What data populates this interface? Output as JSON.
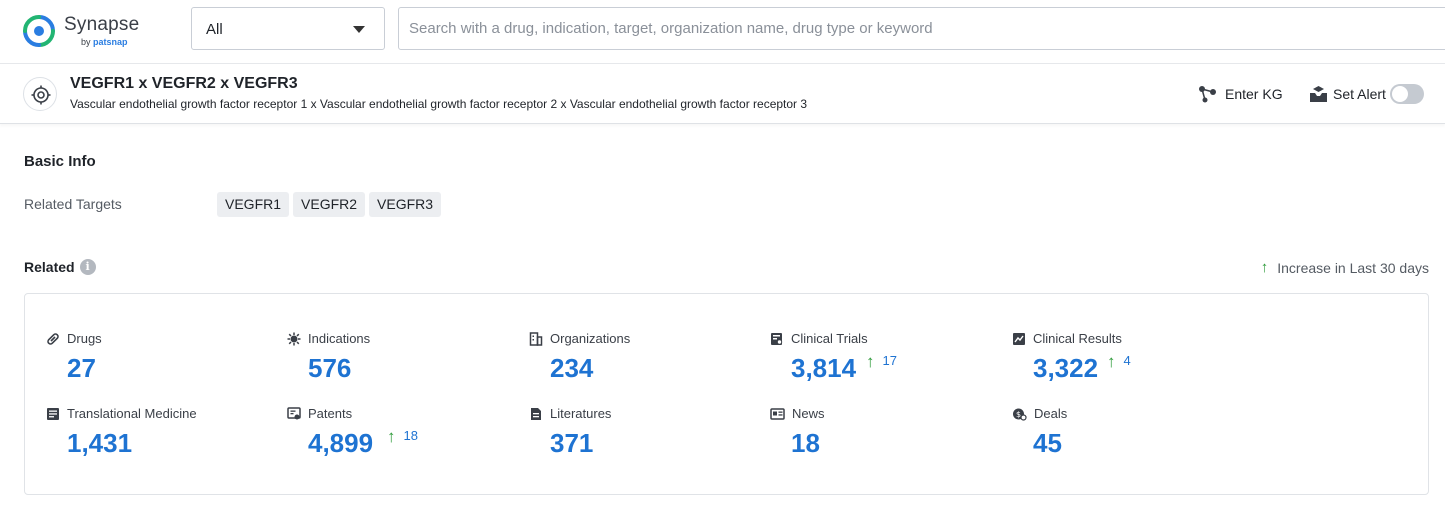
{
  "app": {
    "logo_name": "Synapse",
    "logo_by": "by",
    "logo_brand": "patsnap",
    "brand_color": "#2a7de1"
  },
  "search": {
    "scope_value": "All",
    "placeholder": "Search with a drug, indication, target, organization name, drug type or keyword"
  },
  "header": {
    "title": "VEGFR1 x VEGFR2 x VEGFR3",
    "subtitle": "Vascular endothelial growth factor receptor 1 x Vascular endothelial growth factor receptor 2 x Vascular endothelial growth factor receptor 3",
    "enter_kg_label": "Enter KG",
    "set_alert_label": "Set Alert",
    "alert_enabled": false
  },
  "basic_info": {
    "heading": "Basic Info",
    "related_targets_label": "Related Targets",
    "related_targets": [
      "VEGFR1",
      "VEGFR2",
      "VEGFR3"
    ]
  },
  "related": {
    "heading": "Related",
    "info_icon": "i",
    "legend_arrow": "↑",
    "legend_label": "Increase in Last 30 days",
    "accent_color": "#1e73d2",
    "increase_color": "#2e9b3a",
    "stats": [
      {
        "label": "Drugs",
        "value": "27",
        "increase": "",
        "icon": "pill-icon"
      },
      {
        "label": "Indications",
        "value": "576",
        "increase": "",
        "icon": "virus-icon"
      },
      {
        "label": "Organizations",
        "value": "234",
        "increase": "",
        "icon": "building-icon"
      },
      {
        "label": "Clinical Trials",
        "value": "3,814",
        "increase": "17",
        "icon": "clipboard-search-icon"
      },
      {
        "label": "Clinical Results",
        "value": "3,322",
        "increase": "4",
        "icon": "chart-document-icon"
      },
      {
        "label": "Translational Medicine",
        "value": "1,431",
        "increase": "",
        "icon": "document-list-icon"
      },
      {
        "label": "Patents",
        "value": "4,899",
        "increase": "18",
        "icon": "patent-icon"
      },
      {
        "label": "Literatures",
        "value": "371",
        "increase": "",
        "icon": "book-icon"
      },
      {
        "label": "News",
        "value": "18",
        "increase": "",
        "icon": "newspaper-icon"
      },
      {
        "label": "Deals",
        "value": "45",
        "increase": "",
        "icon": "handshake-icon"
      }
    ]
  }
}
